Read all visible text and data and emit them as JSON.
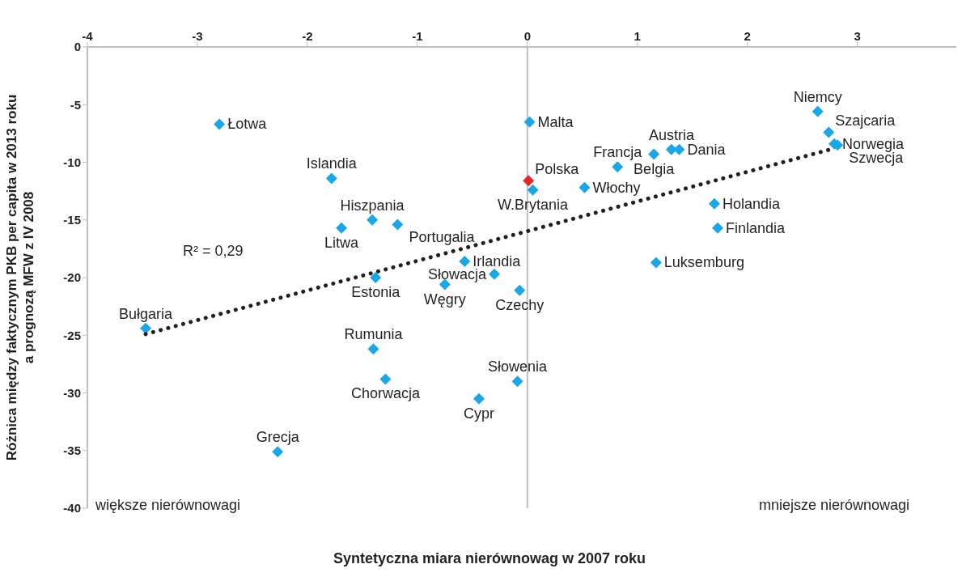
{
  "chart_data": {
    "type": "scatter",
    "xlabel": "Syntetyczna miara nierównowag w 2007 roku",
    "ylabel": "Różnica między faktycznym PKB per capita  w 2013 roku\na prognozą MFW z IV 2008",
    "marker": "diamond",
    "xlim": [
      -4,
      3.9
    ],
    "xticks": [
      -4,
      -3,
      -2,
      -1,
      0,
      1,
      2,
      3
    ],
    "ylim": [
      -40,
      0
    ],
    "yticks": [
      0,
      -5,
      -10,
      -15,
      -20,
      -25,
      -30,
      -35,
      -40
    ],
    "annotations": [
      "R² = 0,29",
      "większe nierównowagi",
      "mniejsze nierównowagi"
    ],
    "series": [
      {
        "name": "Łotwa",
        "color": "#1aa7e8",
        "x": [
          -2.8
        ],
        "values": [
          -6.7
        ]
      },
      {
        "name": "Islandia",
        "color": "#1aa7e8",
        "x": [
          -1.78
        ],
        "values": [
          -11.4
        ]
      },
      {
        "name": "Hiszpania",
        "color": "#1aa7e8",
        "x": [
          -1.41
        ],
        "values": [
          -15.0
        ]
      },
      {
        "name": "Portugalia",
        "color": "#1aa7e8",
        "x": [
          -1.18
        ],
        "values": [
          -15.4
        ]
      },
      {
        "name": "Litwa",
        "color": "#1aa7e8",
        "x": [
          -1.69
        ],
        "values": [
          -15.7
        ]
      },
      {
        "name": "Estonia",
        "color": "#1aa7e8",
        "x": [
          -1.38
        ],
        "values": [
          -20.0
        ]
      },
      {
        "name": "Bułgaria",
        "color": "#1aa7e8",
        "x": [
          -3.47
        ],
        "values": [
          -24.4
        ]
      },
      {
        "name": "Rumunia",
        "color": "#1aa7e8",
        "x": [
          -1.4
        ],
        "values": [
          -26.2
        ]
      },
      {
        "name": "Chorwacja",
        "color": "#1aa7e8",
        "x": [
          -1.29
        ],
        "values": [
          -28.8
        ]
      },
      {
        "name": "Grecja",
        "color": "#1aa7e8",
        "x": [
          -2.27
        ],
        "values": [
          -35.1
        ]
      },
      {
        "name": "Irlandia",
        "color": "#1aa7e8",
        "x": [
          -0.57
        ],
        "values": [
          -18.6
        ]
      },
      {
        "name": "Słowacja",
        "color": "#1aa7e8",
        "x": [
          -0.3
        ],
        "values": [
          -19.7
        ]
      },
      {
        "name": "Węgry",
        "color": "#1aa7e8",
        "x": [
          -0.75
        ],
        "values": [
          -20.6
        ]
      },
      {
        "name": "Czechy",
        "color": "#1aa7e8",
        "x": [
          -0.07
        ],
        "values": [
          -21.1
        ]
      },
      {
        "name": "Słowenia",
        "color": "#1aa7e8",
        "x": [
          -0.09
        ],
        "values": [
          -29.0
        ]
      },
      {
        "name": "Cypr",
        "color": "#1aa7e8",
        "x": [
          -0.44
        ],
        "values": [
          -30.5
        ]
      },
      {
        "name": "Malta",
        "color": "#1aa7e8",
        "x": [
          0.02
        ],
        "values": [
          -6.5
        ]
      },
      {
        "name": "Polska",
        "color": "#e8242a",
        "x": [
          0.01
        ],
        "values": [
          -11.6
        ]
      },
      {
        "name": "W.Brytania",
        "color": "#1aa7e8",
        "x": [
          0.05
        ],
        "values": [
          -12.4
        ]
      },
      {
        "name": "Francja",
        "color": "#1aa7e8",
        "x": [
          0.82
        ],
        "values": [
          -10.4
        ]
      },
      {
        "name": "Włochy",
        "color": "#1aa7e8",
        "x": [
          0.52
        ],
        "values": [
          -12.2
        ]
      },
      {
        "name": "Belgia",
        "color": "#1aa7e8",
        "x": [
          1.15
        ],
        "values": [
          -9.3
        ]
      },
      {
        "name": "Austria",
        "color": "#1aa7e8",
        "x": [
          1.31
        ],
        "values": [
          -8.9
        ]
      },
      {
        "name": "Dania",
        "color": "#1aa7e8",
        "x": [
          1.38
        ],
        "values": [
          -8.9
        ]
      },
      {
        "name": "Holandia",
        "color": "#1aa7e8",
        "x": [
          1.7
        ],
        "values": [
          -13.6
        ]
      },
      {
        "name": "Finlandia",
        "color": "#1aa7e8",
        "x": [
          1.73
        ],
        "values": [
          -15.7
        ]
      },
      {
        "name": "Luksemburg",
        "color": "#1aa7e8",
        "x": [
          1.17
        ],
        "values": [
          -18.7
        ]
      },
      {
        "name": "Niemcy",
        "color": "#1aa7e8",
        "x": [
          2.64
        ],
        "values": [
          -5.6
        ]
      },
      {
        "name": "Szajcaria",
        "color": "#1aa7e8",
        "x": [
          2.74
        ],
        "values": [
          -7.4
        ]
      },
      {
        "name": "Norwegia",
        "color": "#1aa7e8",
        "x": [
          2.79
        ],
        "values": [
          -8.4
        ]
      },
      {
        "name": "Szwecja",
        "color": "#1aa7e8",
        "x": [
          2.82
        ],
        "values": [
          -8.5
        ]
      },
      {
        "type": "line",
        "color": "#231f20",
        "line_style": "dotted",
        "marker": "none",
        "x": [
          -3.47,
          2.75
        ],
        "values": [
          -24.9,
          -8.9
        ]
      }
    ]
  }
}
